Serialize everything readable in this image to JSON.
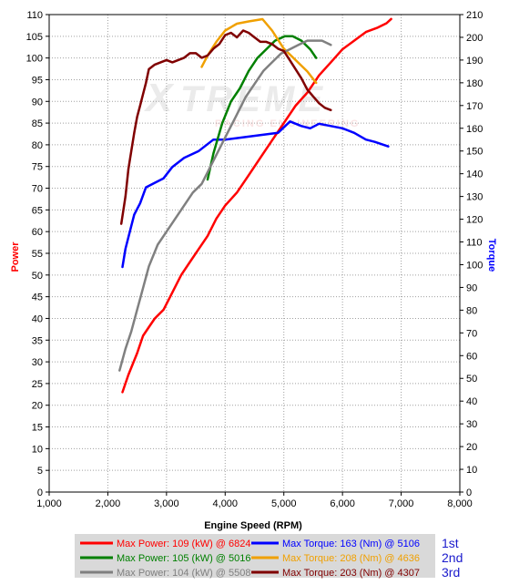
{
  "chart_data": {
    "type": "line",
    "xlabel": "Engine Speed (RPM)",
    "ylabel_left": "Power",
    "ylabel_right": "Torque",
    "xlim": [
      1000,
      8000
    ],
    "ylim_left": [
      0,
      110
    ],
    "ylim_right": [
      0,
      210
    ],
    "x_ticks": [
      "1,000",
      "2,000",
      "3,000",
      "4,000",
      "5,000",
      "6,000",
      "7,000",
      "8,000"
    ],
    "y_ticks_left": [
      "0",
      "5",
      "10",
      "15",
      "20",
      "25",
      "30",
      "35",
      "40",
      "45",
      "50",
      "55",
      "60",
      "65",
      "70",
      "75",
      "80",
      "85",
      "90",
      "95",
      "100",
      "105",
      "110"
    ],
    "y_ticks_right": [
      "0",
      "10",
      "20",
      "30",
      "40",
      "50",
      "60",
      "70",
      "80",
      "90",
      "100",
      "110",
      "120",
      "130",
      "140",
      "150",
      "160",
      "170",
      "180",
      "190",
      "200",
      "210"
    ],
    "grid": true,
    "watermark": "XTREME RACING ENGINEERING",
    "series": [
      {
        "name": "Max Power: 109 (kW) @ 6824",
        "axis": "left",
        "color": "#ff0000",
        "x": [
          2250,
          2350,
          2500,
          2600,
          2700,
          2800,
          2950,
          3100,
          3250,
          3400,
          3550,
          3700,
          3850,
          4000,
          4200,
          4400,
          4600,
          4800,
          5000,
          5200,
          5400,
          5600,
          5800,
          6000,
          6200,
          6400,
          6600,
          6750,
          6830
        ],
        "y": [
          23,
          27,
          32,
          36,
          38,
          40,
          42,
          46,
          50,
          53,
          56,
          59,
          63,
          66,
          69,
          73,
          77,
          81,
          85,
          89,
          92,
          96,
          99,
          102,
          104,
          106,
          107,
          108,
          109
        ]
      },
      {
        "name": "Max Torque: 163 (Nm) @ 5106",
        "axis": "right",
        "color": "#0000ff",
        "x": [
          2250,
          2300,
          2380,
          2450,
          2550,
          2650,
          2800,
          2950,
          3100,
          3300,
          3550,
          3800,
          4000,
          4300,
          4600,
          4900,
          5106,
          5300,
          5450,
          5600,
          5800,
          6000,
          6200,
          6400,
          6550,
          6780
        ],
        "y": [
          99,
          107,
          115,
          122,
          127,
          134,
          136,
          138,
          143,
          147,
          150,
          155,
          155,
          156,
          157,
          158,
          163,
          161,
          160,
          162,
          161,
          160,
          158,
          155,
          154,
          152
        ]
      },
      {
        "name": "Max Power: 105 (kW) @ 5016",
        "axis": "left",
        "color": "#008000",
        "x": [
          3700,
          3800,
          3950,
          4100,
          4250,
          4400,
          4550,
          4700,
          4850,
          5016,
          5150,
          5300,
          5450,
          5550
        ],
        "y": [
          72,
          78,
          85,
          90,
          93,
          97,
          100,
          102,
          104,
          105,
          105,
          104,
          102,
          100
        ]
      },
      {
        "name": "Max Torque: 208 (Nm) @ 4636",
        "axis": "right",
        "color": "#f0a000",
        "x": [
          3600,
          3700,
          3850,
          4000,
          4200,
          4400,
          4636,
          4800,
          5000,
          5200,
          5400,
          5550
        ],
        "y": [
          187,
          192,
          198,
          203,
          206,
          207,
          208,
          203,
          195,
          190,
          185,
          180
        ]
      },
      {
        "name": "Max Power: 104 (kW) @ 5508",
        "axis": "left",
        "color": "#808080",
        "x": [
          2200,
          2300,
          2400,
          2500,
          2600,
          2700,
          2850,
          3000,
          3150,
          3300,
          3450,
          3600,
          3750,
          3900,
          4050,
          4200,
          4350,
          4500,
          4650,
          4800,
          4950,
          5100,
          5250,
          5400,
          5508,
          5650,
          5800
        ],
        "y": [
          28,
          33,
          37,
          42,
          47,
          52,
          57,
          60,
          63,
          66,
          69,
          71,
          75,
          79,
          83,
          87,
          91,
          94,
          97,
          99,
          101,
          102,
          103,
          104,
          104,
          104,
          103
        ]
      },
      {
        "name": "Max Torque: 203 (Nm) @ 4307",
        "axis": "right",
        "color": "#800000",
        "x": [
          2230,
          2300,
          2350,
          2400,
          2450,
          2500,
          2550,
          2600,
          2650,
          2700,
          2800,
          2900,
          3000,
          3100,
          3200,
          3300,
          3400,
          3500,
          3600,
          3700,
          3800,
          3900,
          4000,
          4100,
          4200,
          4307,
          4400,
          4500,
          4600,
          4700,
          4800,
          4900,
          5000,
          5100,
          5200,
          5300,
          5400,
          5500,
          5600,
          5700,
          5800
        ],
        "y": [
          118,
          130,
          142,
          150,
          158,
          165,
          170,
          175,
          180,
          186,
          188,
          189,
          190,
          189,
          190,
          191,
          193,
          193,
          191,
          192,
          195,
          197,
          201,
          202,
          200,
          203,
          202,
          200,
          198,
          198,
          197,
          195,
          194,
          190,
          186,
          182,
          177,
          174,
          171,
          169,
          168
        ]
      }
    ]
  },
  "legend": {
    "rows": [
      {
        "rank": "1st",
        "power_label": "Max Power: 109 (kW) @ 6824",
        "power_color": "#ff0000",
        "torque_label": "Max Torque: 163 (Nm) @ 5106",
        "torque_color": "#0000ff"
      },
      {
        "rank": "2nd",
        "power_label": "Max Power: 105 (kW) @ 5016",
        "power_color": "#008000",
        "torque_label": "Max Torque: 208 (Nm) @ 4636",
        "torque_color": "#f0a000"
      },
      {
        "rank": "3rd",
        "power_label": "Max Power: 104 (kW) @ 5508",
        "power_color": "#808080",
        "torque_label": "Max Torque: 203 (Nm) @ 4307",
        "torque_color": "#800000"
      }
    ]
  }
}
